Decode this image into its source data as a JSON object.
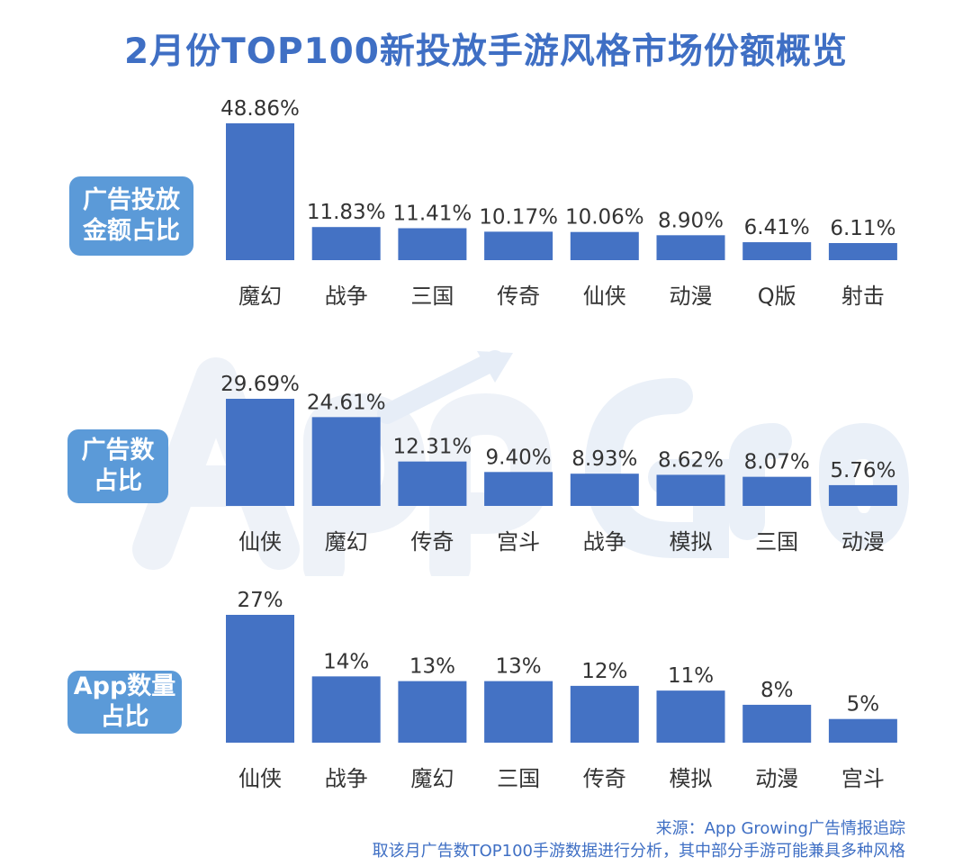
{
  "title": "2月份TOP100新投放手游风格市场份额概览",
  "colors": {
    "bar": "#4472c4",
    "badge": "#5b9ad8",
    "title": "#3f6fc4"
  },
  "source": {
    "line1": "来源：App Growing广告情报追踪",
    "line2": "取该月广告数TOP100手游数据进行分析，其中部分手游可能兼具多种风格"
  },
  "chart_data": [
    {
      "type": "bar",
      "title": "广告投放金额占比",
      "badge_lines": [
        "广告投放",
        "金额占比"
      ],
      "categories": [
        "魔幻",
        "战争",
        "三国",
        "传奇",
        "仙侠",
        "动漫",
        "Q版",
        "射击"
      ],
      "values": [
        48.86,
        11.83,
        11.41,
        10.17,
        10.06,
        8.9,
        6.41,
        6.11
      ],
      "labels": [
        "48.86%",
        "11.83%",
        "11.41%",
        "10.17%",
        "10.06%",
        "8.90%",
        "6.41%",
        "6.11%"
      ]
    },
    {
      "type": "bar",
      "title": "广告数占比",
      "badge_lines": [
        "广告数",
        "占比"
      ],
      "categories": [
        "仙侠",
        "魔幻",
        "传奇",
        "宫斗",
        "战争",
        "模拟",
        "三国",
        "动漫"
      ],
      "values": [
        29.69,
        24.61,
        12.31,
        9.4,
        8.93,
        8.62,
        8.07,
        5.76
      ],
      "labels": [
        "29.69%",
        "24.61%",
        "12.31%",
        "9.40%",
        "8.93%",
        "8.62%",
        "8.07%",
        "5.76%"
      ]
    },
    {
      "type": "bar",
      "title": "App数量占比",
      "badge_lines": [
        "App数量",
        "占比"
      ],
      "categories": [
        "仙侠",
        "战争",
        "魔幻",
        "三国",
        "传奇",
        "模拟",
        "动漫",
        "宫斗"
      ],
      "values": [
        27,
        14,
        13,
        13,
        12,
        11,
        8,
        5
      ],
      "labels": [
        "27%",
        "14%",
        "13%",
        "13%",
        "12%",
        "11%",
        "8%",
        "5%"
      ]
    }
  ]
}
